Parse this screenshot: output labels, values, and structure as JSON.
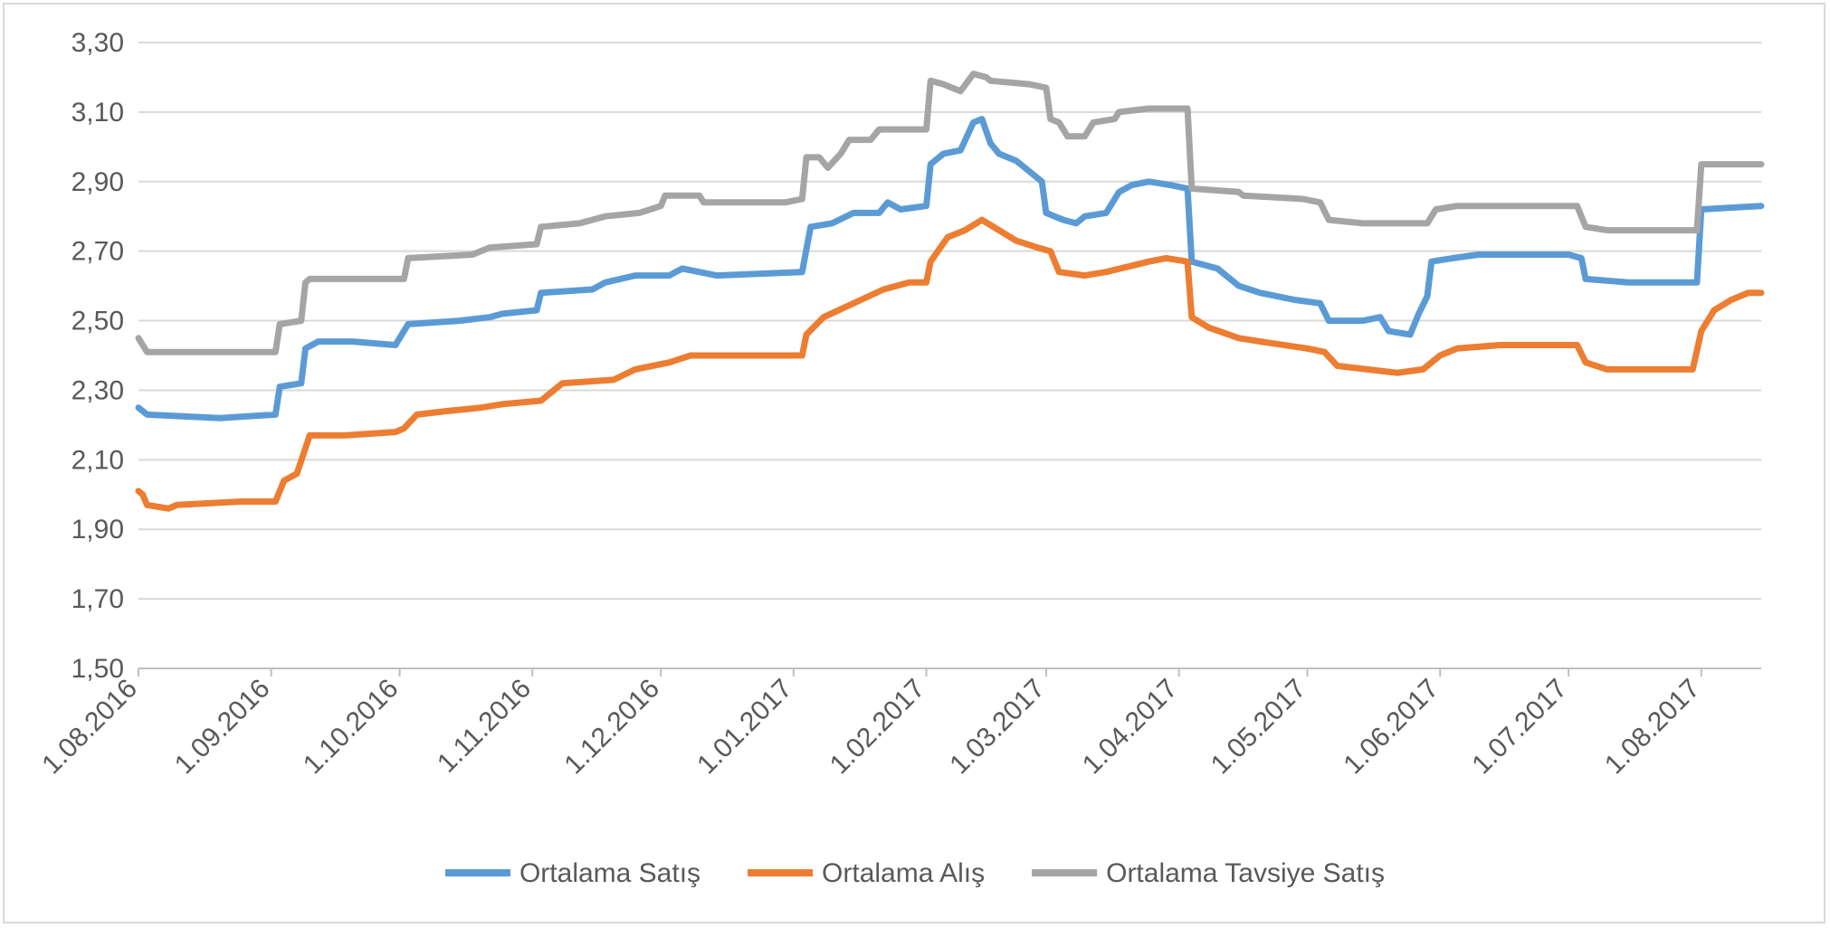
{
  "chart_data": {
    "type": "line",
    "title": "",
    "xlabel": "",
    "ylabel": "",
    "ylim": [
      1.5,
      3.3
    ],
    "y_ticks": [
      "1,50",
      "1,70",
      "1,90",
      "2,10",
      "2,30",
      "2,50",
      "2,70",
      "2,90",
      "3,10",
      "3,30"
    ],
    "x_ticks": [
      "1.08.2016",
      "1.09.2016",
      "1.10.2016",
      "1.11.2016",
      "1.12.2016",
      "1.01.2017",
      "1.02.2017",
      "1.03.2017",
      "1.04.2017",
      "1.05.2017",
      "1.06.2017",
      "1.07.2017",
      "1.08.2017"
    ],
    "x_range": [
      "2016-08-01",
      "2017-08-15"
    ],
    "grid": true,
    "legend": "bottom",
    "series": [
      {
        "name": "Ortalama Satış",
        "color": "#5B9BD5",
        "points": [
          [
            "2016-08-01",
            2.25
          ],
          [
            "2016-08-03",
            2.23
          ],
          [
            "2016-08-20",
            2.22
          ],
          [
            "2016-09-02",
            2.23
          ],
          [
            "2016-09-03",
            2.31
          ],
          [
            "2016-09-08",
            2.32
          ],
          [
            "2016-09-09",
            2.42
          ],
          [
            "2016-09-12",
            2.44
          ],
          [
            "2016-09-20",
            2.44
          ],
          [
            "2016-09-30",
            2.43
          ],
          [
            "2016-10-03",
            2.49
          ],
          [
            "2016-10-15",
            2.5
          ],
          [
            "2016-10-22",
            2.51
          ],
          [
            "2016-10-25",
            2.52
          ],
          [
            "2016-11-02",
            2.53
          ],
          [
            "2016-11-03",
            2.58
          ],
          [
            "2016-11-15",
            2.59
          ],
          [
            "2016-11-18",
            2.61
          ],
          [
            "2016-11-25",
            2.63
          ],
          [
            "2016-12-03",
            2.63
          ],
          [
            "2016-12-06",
            2.65
          ],
          [
            "2016-12-10",
            2.64
          ],
          [
            "2016-12-14",
            2.63
          ],
          [
            "2017-01-03",
            2.64
          ],
          [
            "2017-01-05",
            2.77
          ],
          [
            "2017-01-10",
            2.78
          ],
          [
            "2017-01-15",
            2.81
          ],
          [
            "2017-01-21",
            2.81
          ],
          [
            "2017-01-23",
            2.84
          ],
          [
            "2017-01-26",
            2.82
          ],
          [
            "2017-02-01",
            2.83
          ],
          [
            "2017-02-02",
            2.95
          ],
          [
            "2017-02-05",
            2.98
          ],
          [
            "2017-02-09",
            2.99
          ],
          [
            "2017-02-12",
            3.07
          ],
          [
            "2017-02-14",
            3.08
          ],
          [
            "2017-02-16",
            3.01
          ],
          [
            "2017-02-18",
            2.98
          ],
          [
            "2017-02-22",
            2.96
          ],
          [
            "2017-02-25",
            2.93
          ],
          [
            "2017-02-28",
            2.9
          ],
          [
            "2017-03-01",
            2.81
          ],
          [
            "2017-03-05",
            2.79
          ],
          [
            "2017-03-08",
            2.78
          ],
          [
            "2017-03-10",
            2.8
          ],
          [
            "2017-03-15",
            2.81
          ],
          [
            "2017-03-18",
            2.87
          ],
          [
            "2017-03-21",
            2.89
          ],
          [
            "2017-03-25",
            2.9
          ],
          [
            "2017-03-30",
            2.89
          ],
          [
            "2017-04-03",
            2.88
          ],
          [
            "2017-04-04",
            2.67
          ],
          [
            "2017-04-10",
            2.65
          ],
          [
            "2017-04-15",
            2.6
          ],
          [
            "2017-04-20",
            2.58
          ],
          [
            "2017-04-28",
            2.56
          ],
          [
            "2017-05-04",
            2.55
          ],
          [
            "2017-05-06",
            2.5
          ],
          [
            "2017-05-14",
            2.5
          ],
          [
            "2017-05-18",
            2.51
          ],
          [
            "2017-05-20",
            2.47
          ],
          [
            "2017-05-25",
            2.46
          ],
          [
            "2017-05-27",
            2.52
          ],
          [
            "2017-05-29",
            2.57
          ],
          [
            "2017-05-30",
            2.67
          ],
          [
            "2017-06-04",
            2.68
          ],
          [
            "2017-06-10",
            2.69
          ],
          [
            "2017-06-20",
            2.69
          ],
          [
            "2017-07-01",
            2.69
          ],
          [
            "2017-07-04",
            2.68
          ],
          [
            "2017-07-05",
            2.62
          ],
          [
            "2017-07-15",
            2.61
          ],
          [
            "2017-07-31",
            2.61
          ],
          [
            "2017-08-01",
            2.82
          ],
          [
            "2017-08-15",
            2.83
          ]
        ]
      },
      {
        "name": "Ortalama Alış",
        "color": "#ED7D31",
        "points": [
          [
            "2016-08-01",
            2.01
          ],
          [
            "2016-08-02",
            2.0
          ],
          [
            "2016-08-03",
            1.97
          ],
          [
            "2016-08-08",
            1.96
          ],
          [
            "2016-08-10",
            1.97
          ],
          [
            "2016-08-25",
            1.98
          ],
          [
            "2016-09-02",
            1.98
          ],
          [
            "2016-09-04",
            2.04
          ],
          [
            "2016-09-07",
            2.06
          ],
          [
            "2016-09-10",
            2.17
          ],
          [
            "2016-09-18",
            2.17
          ],
          [
            "2016-09-30",
            2.18
          ],
          [
            "2016-10-02",
            2.19
          ],
          [
            "2016-10-05",
            2.23
          ],
          [
            "2016-10-12",
            2.24
          ],
          [
            "2016-10-20",
            2.25
          ],
          [
            "2016-10-25",
            2.26
          ],
          [
            "2016-11-03",
            2.27
          ],
          [
            "2016-11-06",
            2.3
          ],
          [
            "2016-11-08",
            2.32
          ],
          [
            "2016-11-20",
            2.33
          ],
          [
            "2016-11-25",
            2.36
          ],
          [
            "2016-12-03",
            2.38
          ],
          [
            "2016-12-08",
            2.4
          ],
          [
            "2016-12-15",
            2.4
          ],
          [
            "2017-01-03",
            2.4
          ],
          [
            "2017-01-04",
            2.46
          ],
          [
            "2017-01-08",
            2.51
          ],
          [
            "2017-01-15",
            2.55
          ],
          [
            "2017-01-22",
            2.59
          ],
          [
            "2017-01-28",
            2.61
          ],
          [
            "2017-02-01",
            2.61
          ],
          [
            "2017-02-02",
            2.67
          ],
          [
            "2017-02-06",
            2.74
          ],
          [
            "2017-02-10",
            2.76
          ],
          [
            "2017-02-14",
            2.79
          ],
          [
            "2017-02-18",
            2.76
          ],
          [
            "2017-02-22",
            2.73
          ],
          [
            "2017-02-27",
            2.71
          ],
          [
            "2017-03-02",
            2.7
          ],
          [
            "2017-03-04",
            2.64
          ],
          [
            "2017-03-10",
            2.63
          ],
          [
            "2017-03-15",
            2.64
          ],
          [
            "2017-03-25",
            2.67
          ],
          [
            "2017-03-29",
            2.68
          ],
          [
            "2017-04-03",
            2.67
          ],
          [
            "2017-04-04",
            2.51
          ],
          [
            "2017-04-08",
            2.48
          ],
          [
            "2017-04-15",
            2.45
          ],
          [
            "2017-04-20",
            2.44
          ],
          [
            "2017-05-01",
            2.42
          ],
          [
            "2017-05-05",
            2.41
          ],
          [
            "2017-05-08",
            2.37
          ],
          [
            "2017-05-15",
            2.36
          ],
          [
            "2017-05-22",
            2.35
          ],
          [
            "2017-05-28",
            2.36
          ],
          [
            "2017-06-01",
            2.4
          ],
          [
            "2017-06-05",
            2.42
          ],
          [
            "2017-06-15",
            2.43
          ],
          [
            "2017-06-25",
            2.43
          ],
          [
            "2017-07-03",
            2.43
          ],
          [
            "2017-07-05",
            2.38
          ],
          [
            "2017-07-10",
            2.36
          ],
          [
            "2017-07-30",
            2.36
          ],
          [
            "2017-08-01",
            2.47
          ],
          [
            "2017-08-04",
            2.53
          ],
          [
            "2017-08-08",
            2.56
          ],
          [
            "2017-08-12",
            2.58
          ],
          [
            "2017-08-15",
            2.58
          ]
        ]
      },
      {
        "name": "Ortalama Tavsiye Satış",
        "color": "#A5A5A5",
        "points": [
          [
            "2016-08-01",
            2.45
          ],
          [
            "2016-08-03",
            2.41
          ],
          [
            "2016-09-02",
            2.41
          ],
          [
            "2016-09-03",
            2.49
          ],
          [
            "2016-09-08",
            2.5
          ],
          [
            "2016-09-09",
            2.61
          ],
          [
            "2016-09-10",
            2.62
          ],
          [
            "2016-10-02",
            2.62
          ],
          [
            "2016-10-03",
            2.68
          ],
          [
            "2016-10-18",
            2.69
          ],
          [
            "2016-10-22",
            2.71
          ],
          [
            "2016-11-02",
            2.72
          ],
          [
            "2016-11-03",
            2.77
          ],
          [
            "2016-11-12",
            2.78
          ],
          [
            "2016-11-18",
            2.8
          ],
          [
            "2016-11-26",
            2.81
          ],
          [
            "2016-12-01",
            2.83
          ],
          [
            "2016-12-02",
            2.86
          ],
          [
            "2016-12-10",
            2.86
          ],
          [
            "2016-12-11",
            2.84
          ],
          [
            "2016-12-30",
            2.84
          ],
          [
            "2017-01-03",
            2.85
          ],
          [
            "2017-01-04",
            2.97
          ],
          [
            "2017-01-07",
            2.97
          ],
          [
            "2017-01-09",
            2.94
          ],
          [
            "2017-01-12",
            2.98
          ],
          [
            "2017-01-14",
            3.02
          ],
          [
            "2017-01-19",
            3.02
          ],
          [
            "2017-01-21",
            3.05
          ],
          [
            "2017-02-01",
            3.05
          ],
          [
            "2017-02-02",
            3.19
          ],
          [
            "2017-02-05",
            3.18
          ],
          [
            "2017-02-09",
            3.16
          ],
          [
            "2017-02-12",
            3.21
          ],
          [
            "2017-02-15",
            3.2
          ],
          [
            "2017-02-16",
            3.19
          ],
          [
            "2017-02-25",
            3.18
          ],
          [
            "2017-03-01",
            3.17
          ],
          [
            "2017-03-02",
            3.08
          ],
          [
            "2017-03-04",
            3.07
          ],
          [
            "2017-03-06",
            3.03
          ],
          [
            "2017-03-10",
            3.03
          ],
          [
            "2017-03-12",
            3.07
          ],
          [
            "2017-03-17",
            3.08
          ],
          [
            "2017-03-18",
            3.1
          ],
          [
            "2017-03-25",
            3.11
          ],
          [
            "2017-04-03",
            3.11
          ],
          [
            "2017-04-04",
            2.88
          ],
          [
            "2017-04-15",
            2.87
          ],
          [
            "2017-04-16",
            2.86
          ],
          [
            "2017-04-30",
            2.85
          ],
          [
            "2017-05-04",
            2.84
          ],
          [
            "2017-05-06",
            2.79
          ],
          [
            "2017-05-14",
            2.78
          ],
          [
            "2017-05-29",
            2.78
          ],
          [
            "2017-05-31",
            2.82
          ],
          [
            "2017-06-05",
            2.83
          ],
          [
            "2017-07-03",
            2.83
          ],
          [
            "2017-07-05",
            2.77
          ],
          [
            "2017-07-10",
            2.76
          ],
          [
            "2017-07-31",
            2.76
          ],
          [
            "2017-08-01",
            2.95
          ],
          [
            "2017-08-15",
            2.95
          ]
        ]
      }
    ]
  }
}
